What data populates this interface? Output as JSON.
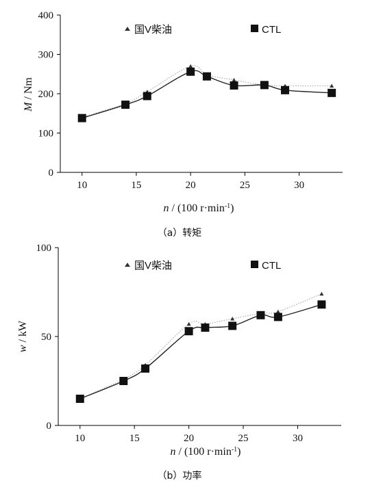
{
  "chart_data": [
    {
      "type": "line",
      "caption": "（a）转矩",
      "ylabel_italic": "M",
      "ylabel_rest": " / Nm",
      "xlabel_italic": "n",
      "xlabel_rest": " / (100 r·min",
      "xlabel_sup": "-1",
      "xlabel_close": ")",
      "xlim": [
        8,
        34
      ],
      "ylim": [
        0,
        400
      ],
      "xticks": [
        10,
        15,
        20,
        25,
        30
      ],
      "yticks": [
        0,
        100,
        200,
        300,
        400
      ],
      "legend_position": "top",
      "series": [
        {
          "name": "国V柴油",
          "marker": "triangle",
          "line_style": "dotted",
          "color": "#aaaaaa",
          "x": [
            10,
            14,
            16,
            20,
            21.5,
            24,
            26.8,
            28.7,
            33
          ],
          "y": [
            140,
            175,
            205,
            270,
            248,
            235,
            222,
            220,
            220
          ]
        },
        {
          "name": "CTL",
          "marker": "square",
          "line_style": "solid",
          "color": "#222222",
          "x": [
            10,
            14,
            16,
            20,
            21.5,
            24,
            26.8,
            28.7,
            33
          ],
          "y": [
            138,
            172,
            194,
            256,
            244,
            221,
            222,
            209,
            202
          ]
        }
      ]
    },
    {
      "type": "line",
      "caption": "（b）功率",
      "ylabel_italic": "w",
      "ylabel_rest": " / kW",
      "xlabel_italic": "n",
      "xlabel_rest": " / (100 r·min",
      "xlabel_sup": "-1",
      "xlabel_close": ")",
      "xlim": [
        8,
        34
      ],
      "ylim": [
        0,
        100
      ],
      "xticks": [
        10,
        15,
        20,
        25,
        30
      ],
      "yticks": [
        0,
        50,
        100
      ],
      "legend_position": "top",
      "series": [
        {
          "name": "国V柴油",
          "marker": "triangle",
          "line_style": "dotted",
          "color": "#aaaaaa",
          "x": [
            10,
            14,
            16,
            20,
            21.5,
            24,
            26.6,
            28.2,
            32.2
          ],
          "y": [
            15,
            26,
            34,
            57,
            57,
            60,
            63,
            64,
            74
          ]
        },
        {
          "name": "CTL",
          "marker": "square",
          "line_style": "solid",
          "color": "#222222",
          "x": [
            10,
            14,
            16,
            20,
            21.5,
            24,
            26.6,
            28.2,
            32.2
          ],
          "y": [
            15,
            25,
            32,
            53,
            55,
            56,
            62,
            61,
            68
          ]
        }
      ]
    }
  ]
}
